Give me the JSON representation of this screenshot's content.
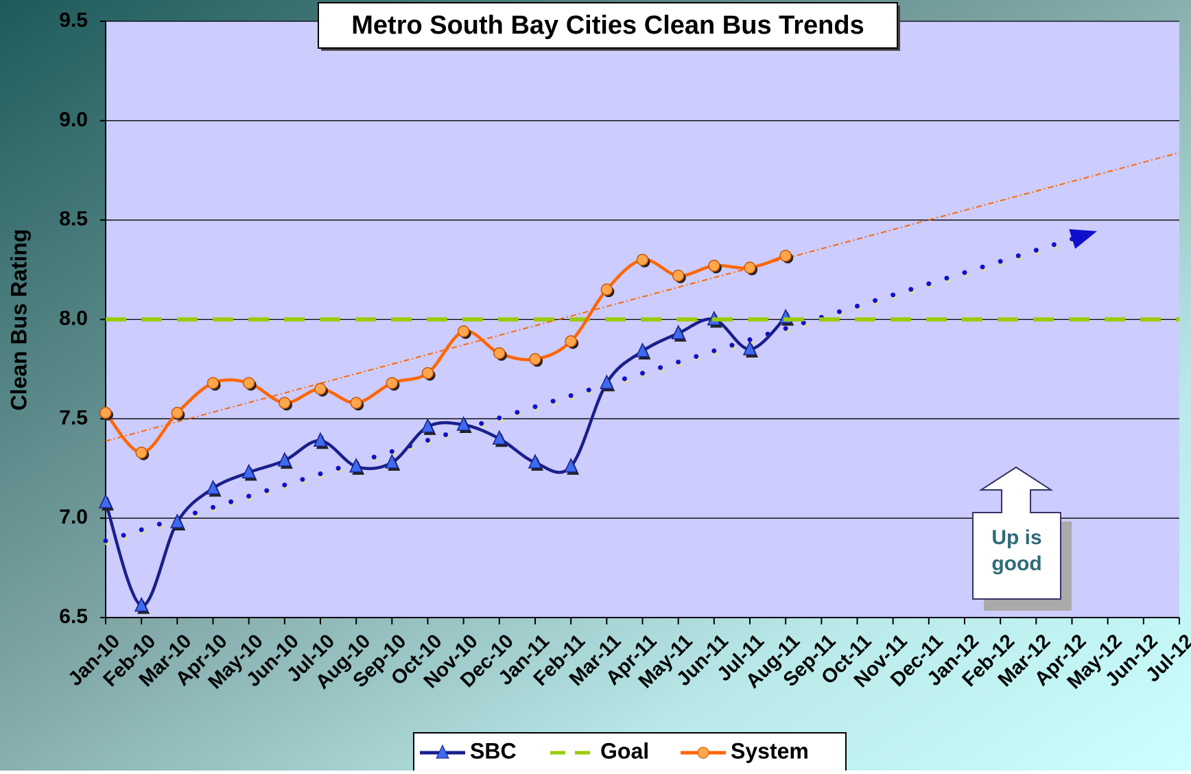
{
  "chart_data": {
    "type": "line",
    "title": "Metro South Bay Cities Clean Bus Trends",
    "y_label": "Clean Bus Rating",
    "annotation": "Up is good",
    "categories": [
      "Jan-10",
      "Feb-10",
      "Mar-10",
      "Apr-10",
      "May-10",
      "Jun-10",
      "Jul-10",
      "Aug-10",
      "Sep-10",
      "Oct-10",
      "Nov-10",
      "Dec-10",
      "Jan-11",
      "Feb-11",
      "Mar-11",
      "Apr-11",
      "May-11",
      "Jun-11",
      "Jul-11",
      "Aug-11",
      "Sep-11",
      "Oct-11",
      "Nov-11",
      "Dec-11",
      "Jan-12",
      "Feb-12",
      "Mar-12",
      "Apr-12",
      "May-12",
      "Jun-12",
      "Jul-12"
    ],
    "series": [
      {
        "name": "SBC",
        "color": "#1a1f8c",
        "marker": "triangle",
        "values": [
          7.08,
          6.56,
          6.98,
          7.15,
          7.23,
          7.29,
          7.39,
          7.26,
          7.28,
          7.46,
          7.47,
          7.4,
          7.28,
          7.26,
          7.68,
          7.84,
          7.93,
          8.0,
          7.85,
          8.01,
          null,
          null,
          null,
          null,
          null,
          null,
          null,
          null,
          null,
          null,
          null
        ]
      },
      {
        "name": "Goal",
        "color": "#99cc00",
        "dashed": true,
        "values": [
          8,
          8,
          8,
          8,
          8,
          8,
          8,
          8,
          8,
          8,
          8,
          8,
          8,
          8,
          8,
          8,
          8,
          8,
          8,
          8,
          8,
          8,
          8,
          8,
          8,
          8,
          8,
          8,
          8,
          8,
          8
        ]
      },
      {
        "name": "System",
        "color": "#ff6600",
        "marker": "circle",
        "values": [
          7.53,
          7.33,
          7.53,
          7.68,
          7.68,
          7.58,
          7.65,
          7.58,
          7.68,
          7.73,
          7.94,
          7.83,
          7.8,
          7.89,
          8.15,
          8.3,
          8.22,
          8.27,
          8.26,
          8.32,
          null,
          null,
          null,
          null,
          null,
          null,
          null,
          null,
          null,
          null,
          null
        ]
      }
    ],
    "ylim": [
      6.5,
      9.5
    ],
    "yticks": [
      6.5,
      {
        "value": 7,
        "label": "7.0"
      },
      7.5,
      {
        "value": 8,
        "label": "8.0"
      },
      8.5,
      {
        "value": 9,
        "label": "9.0"
      },
      9.5
    ],
    "grid": true,
    "trendlines": true,
    "legend": "bottom"
  }
}
